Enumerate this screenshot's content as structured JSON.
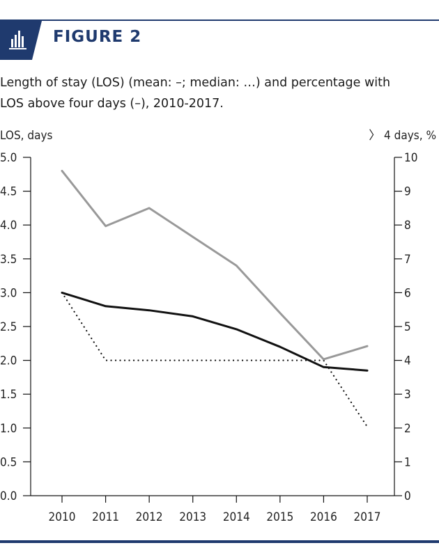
{
  "header": {
    "figure_label": "FIGURE 2",
    "icon": "bar-chart-icon",
    "accent_color": "#1f3a6e"
  },
  "caption": {
    "line1": "Length of stay (LOS) (mean: –; median: …) and percentage with",
    "line2": "LOS above four days (–), 2010-2017."
  },
  "chart_data": {
    "type": "line",
    "categories": [
      "2010",
      "2011",
      "2012",
      "2013",
      "2014",
      "2015",
      "2016",
      "2017"
    ],
    "ylabel_left": "LOS, days",
    "ylabel_right": "〉 4 days, %",
    "ylim_left": [
      0,
      5
    ],
    "ylim_right": [
      0,
      10
    ],
    "yticks_left": [
      "0.0",
      "0.5",
      "1.0",
      "1.5",
      "2.0",
      "2.5",
      "3.0",
      "3.5",
      "4.0",
      "4.5",
      "5.0"
    ],
    "yticks_right": [
      "0",
      "1",
      "2",
      "3",
      "4",
      "5",
      "6",
      "7",
      "8",
      "9",
      "10"
    ],
    "grid": false,
    "series": [
      {
        "axis": "left",
        "color": "#111111",
        "style": "solid",
        "values": [
          3.0,
          2.8,
          2.74,
          2.65,
          2.46,
          2.2,
          1.9,
          1.85
        ]
      },
      {
        "axis": "left",
        "color": "#111111",
        "style": "dotted",
        "values": [
          3.0,
          2.0,
          2.0,
          2.0,
          2.0,
          2.0,
          2.0,
          1.02
        ]
      },
      {
        "axis": "right",
        "color": "#999999",
        "style": "solid",
        "values": [
          9.6,
          7.97,
          8.5,
          7.65,
          6.8,
          5.4,
          4.03,
          4.42
        ]
      }
    ]
  }
}
